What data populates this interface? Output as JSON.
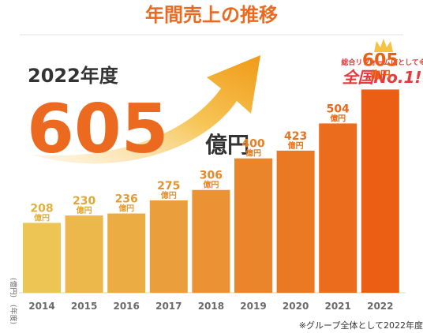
{
  "title": "年間売上の推移",
  "highlight": {
    "year_label": "2022年度",
    "value": "605",
    "unit": "億円"
  },
  "badge": {
    "line1": "総合リフォーム店として※",
    "line2": "全国No.1!"
  },
  "footnote": "※グループ全体として2022年度",
  "axis_notes": {
    "unit": "(億円)",
    "year": "(年度)"
  },
  "colors": {
    "accent": "#ec6a1f",
    "bar_start": "#ecc554",
    "bar_end": "#ea5f14",
    "arrow_start": "#f9d48a",
    "arrow_end": "#f0a21a",
    "badge_red": "#e8383d",
    "crown": "#f5c242"
  },
  "chart_data": {
    "type": "bar",
    "title": "年間売上の推移",
    "categories": [
      "2014",
      "2015",
      "2016",
      "2017",
      "2018",
      "2019",
      "2020",
      "2021",
      "2022"
    ],
    "values": [
      208,
      230,
      236,
      275,
      306,
      400,
      423,
      504,
      605
    ],
    "value_unit": "億円",
    "xlabel": "(年度)",
    "ylabel": "(億円)",
    "ylim": [
      0,
      660
    ],
    "grid": false,
    "legend": "none"
  }
}
